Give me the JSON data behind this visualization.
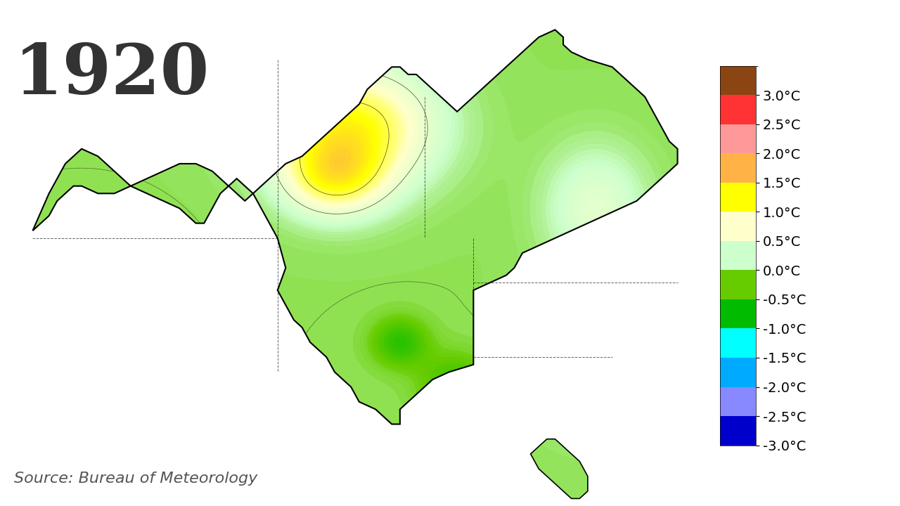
{
  "year": "1920",
  "source_text": "Source: Bureau of Meteorology",
  "colorbar_labels": [
    "3.0°C",
    "2.5°C",
    "2.0°C",
    "1.5°C",
    "1.0°C",
    "0.5°C",
    "0.0°C",
    "-0.5°C",
    "-1.0°C",
    "-1.5°C",
    "-2.0°C",
    "-2.5°C",
    "-3.0°C"
  ],
  "colorbar_colors": [
    "#8B4513",
    "#FF0000",
    "#FF3333",
    "#FF9999",
    "#FFB347",
    "#FFFF00",
    "#FFFFCC",
    "#CCFFCC",
    "#66CC00",
    "#00BB00",
    "#00FFFF",
    "#00AAFF",
    "#8888FF",
    "#0000CC"
  ],
  "background_color": "#FFFFFF",
  "map_background": "#FFFFFF",
  "title_fontsize": 72,
  "source_fontsize": 16,
  "colorbar_fontsize": 14
}
